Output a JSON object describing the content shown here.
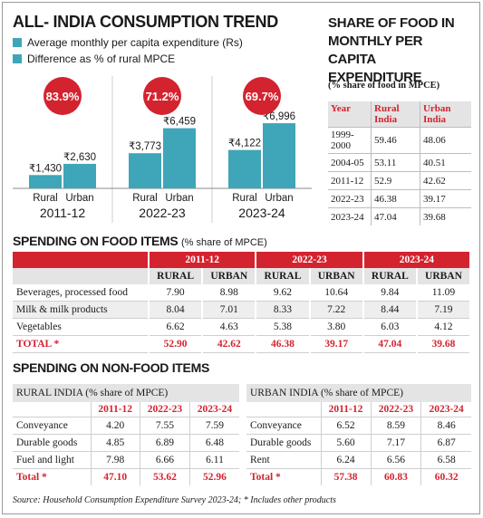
{
  "trend": {
    "title": "ALL- INDIA CONSUMPTION TREND",
    "legend": [
      {
        "label": "Average monthly per capita expenditure (Rs)",
        "color": "#3ea6b8"
      },
      {
        "label": "Difference as % of rural MPCE",
        "color": "#3ea6b8"
      }
    ],
    "bar_color": "#3ea6b8",
    "badge_color": "#d3232f"
  },
  "chart_data": {
    "type": "bar",
    "title": "ALL- INDIA CONSUMPTION TREND",
    "categories": [
      "2011-12",
      "2022-23",
      "2023-24"
    ],
    "groups": [
      "Rural",
      "Urban"
    ],
    "series": [
      {
        "name": "Average monthly per capita expenditure (Rs)",
        "rural": [
          1430,
          3773,
          4122
        ],
        "urban": [
          2630,
          6459,
          6996
        ]
      }
    ],
    "value_labels": {
      "rural": [
        "₹1,430",
        "₹3,773",
        "₹4,122"
      ],
      "urban": [
        "₹2,630",
        "₹6,459",
        "₹6,996"
      ]
    },
    "difference_pct": [
      83.9,
      71.2,
      69.7
    ],
    "difference_labels": [
      "83.9%",
      "71.2%",
      "69.7%"
    ],
    "ylim": [
      0,
      7000
    ]
  },
  "share": {
    "title_lines": [
      "SHARE OF FOOD IN",
      "MONTHLY PER CAPITA",
      "EXPENDITURE"
    ],
    "subtitle": "(% share of food in MPCE)",
    "headers": [
      "Year",
      "Rural India",
      "Urban India"
    ],
    "rows": [
      [
        "1999-2000",
        "59.46",
        "48.06"
      ],
      [
        "2004-05",
        "53.11",
        "40.51"
      ],
      [
        "2011-12",
        "52.9",
        "42.62"
      ],
      [
        "2022-23",
        "46.38",
        "39.17"
      ],
      [
        "2023-24",
        "47.04",
        "39.68"
      ]
    ]
  },
  "food": {
    "title": "SPENDING ON FOOD ITEMS",
    "subtitle": "(% share of MPCE)",
    "years": [
      "2011-12",
      "2022-23",
      "2023-24"
    ],
    "sub_headers": [
      "RURAL",
      "URBAN",
      "RURAL",
      "URBAN",
      "RURAL",
      "URBAN"
    ],
    "rows": [
      [
        "Beverages, processed food",
        "7.90",
        "8.98",
        "9.62",
        "10.64",
        "9.84",
        "11.09"
      ],
      [
        "Milk & milk products",
        "8.04",
        "7.01",
        "8.33",
        "7.22",
        "8.44",
        "7.19"
      ],
      [
        "Vegetables",
        "6.62",
        "4.63",
        "5.38",
        "3.80",
        "6.03",
        "4.12"
      ],
      [
        "TOTAL *",
        "52.90",
        "42.62",
        "46.38",
        "39.17",
        "47.04",
        "39.68"
      ]
    ]
  },
  "nonfood": {
    "title": "SPENDING ON NON-FOOD ITEMS",
    "rural": {
      "heading": "RURAL INDIA (% share of MPCE)",
      "years": [
        "2011-12",
        "2022-23",
        "2023-24"
      ],
      "rows": [
        [
          "Conveyance",
          "4.20",
          "7.55",
          "7.59"
        ],
        [
          "Durable goods",
          "4.85",
          "6.89",
          "6.48"
        ],
        [
          "Fuel and light",
          "7.98",
          "6.66",
          "6.11"
        ],
        [
          "Total *",
          "47.10",
          "53.62",
          "52.96"
        ]
      ]
    },
    "urban": {
      "heading": "URBAN INDIA (% share of MPCE)",
      "years": [
        "2011-12",
        "2022-23",
        "2023-24"
      ],
      "rows": [
        [
          "Conveyance",
          "6.52",
          "8.59",
          "8.46"
        ],
        [
          "Durable goods",
          "5.60",
          "7.17",
          "6.87"
        ],
        [
          "Rent",
          "6.24",
          "6.56",
          "6.58"
        ],
        [
          "Total *",
          "57.38",
          "60.83",
          "60.32"
        ]
      ]
    }
  },
  "source": "Source: Household Consumption Expenditure Survey 2023-24; * Includes other products"
}
